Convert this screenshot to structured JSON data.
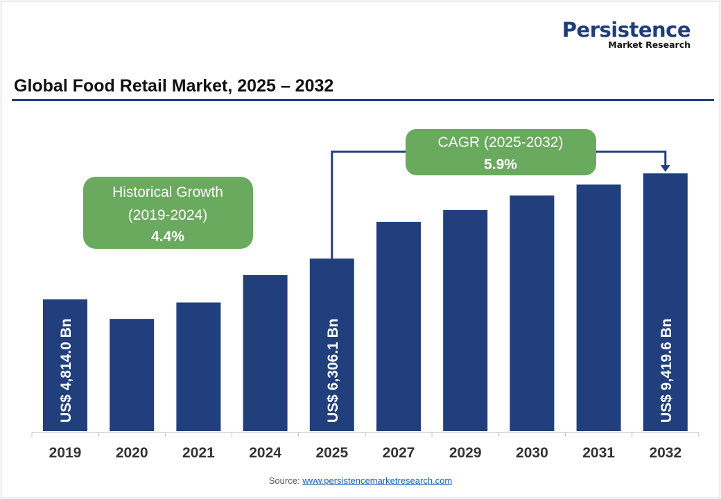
{
  "logo": {
    "line1": "Persistence",
    "line2": "Market Research"
  },
  "chart_data": {
    "type": "bar",
    "title": "Global Food Retail Market, 2025 – 2032",
    "categories": [
      "2019",
      "2020",
      "2021",
      "2024",
      "2025",
      "2027",
      "2029",
      "2030",
      "2031",
      "2032"
    ],
    "values": [
      4814.0,
      4100,
      4700,
      5700,
      6306.1,
      7650,
      8080,
      8610,
      9010,
      9419.6
    ],
    "data_labels": {
      "0": "US$ 4,814.0 Bn",
      "4": "US$ 6,306.1 Bn",
      "9": "US$ 9,419.6 Bn"
    },
    "ylim": [
      0,
      9500
    ],
    "grid": false,
    "bar_color": "#203f7c",
    "annotations": {
      "historical": {
        "line1": "Historical Growth",
        "line2": "(2019-2024)",
        "value": "4.4%"
      },
      "cagr": {
        "line1": "CAGR (2025-2032)",
        "value": "5.9%"
      },
      "box_color": "#6aaa5e"
    }
  },
  "source": {
    "label": "Source:",
    "link": "www.persistencemarketresearch.com"
  }
}
